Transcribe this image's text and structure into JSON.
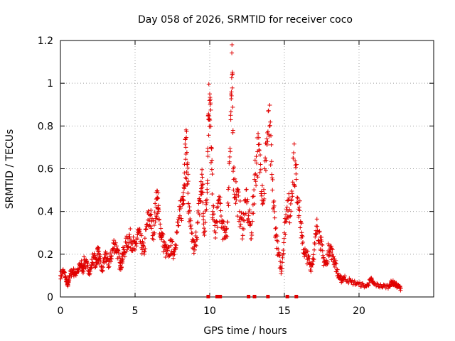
{
  "chart_data": {
    "type": "scatter",
    "title": "Day 058 of 2026, SRMTID for receiver coco",
    "xlabel": "GPS time / hours",
    "ylabel": "SRMTID / TECUs",
    "xlim": [
      0,
      25
    ],
    "ylim": [
      0,
      1.2
    ],
    "x_ticks": [
      0,
      5,
      10,
      15,
      20
    ],
    "x_tick_labels": [
      "0",
      "5",
      "10",
      "15",
      "20"
    ],
    "y_ticks": [
      0,
      0.2,
      0.4,
      0.6,
      0.8,
      1.0,
      1.2
    ],
    "y_tick_labels": [
      "0",
      "0.2",
      "0.4",
      "0.6",
      "0.8",
      "1",
      "1.2"
    ],
    "grid": true,
    "series": [
      {
        "name": "SRMTID",
        "color": "#e00000",
        "marker": "plus",
        "x": [
          0.0,
          0.2,
          0.4,
          0.5,
          0.6,
          0.8,
          1.0,
          1.2,
          1.4,
          1.5,
          1.6,
          1.8,
          2.0,
          2.2,
          2.4,
          2.5,
          2.6,
          2.8,
          3.0,
          3.2,
          3.4,
          3.6,
          3.8,
          4.0,
          4.1,
          4.2,
          4.4,
          4.6,
          4.8,
          5.0,
          5.2,
          5.4,
          5.6,
          5.8,
          6.0,
          6.2,
          6.4,
          6.5,
          6.6,
          6.8,
          7.0,
          7.2,
          7.4,
          7.6,
          7.8,
          8.0,
          8.2,
          8.3,
          8.4,
          8.5,
          8.6,
          8.8,
          9.0,
          9.2,
          9.4,
          9.5,
          9.6,
          9.8,
          9.9,
          10.0,
          10.1,
          10.2,
          10.4,
          10.6,
          10.8,
          11.0,
          11.2,
          11.4,
          11.5,
          11.6,
          11.8,
          12.0,
          12.2,
          12.4,
          12.6,
          12.8,
          13.0,
          13.2,
          13.4,
          13.6,
          13.8,
          14.0,
          14.2,
          14.4,
          14.6,
          14.8,
          15.0,
          15.2,
          15.4,
          15.6,
          15.8,
          16.0,
          16.2,
          16.4,
          16.6,
          16.8,
          17.0,
          17.2,
          17.4,
          17.6,
          17.8,
          18.0,
          18.2,
          18.4,
          18.6,
          18.8,
          19.0,
          19.5,
          20.0,
          20.5,
          20.8,
          21.0,
          21.5,
          22.0,
          22.2,
          22.4,
          22.6,
          22.8
        ],
        "y": [
          0.1,
          0.12,
          0.08,
          0.05,
          0.1,
          0.12,
          0.11,
          0.13,
          0.15,
          0.12,
          0.17,
          0.14,
          0.12,
          0.19,
          0.15,
          0.22,
          0.18,
          0.12,
          0.2,
          0.15,
          0.19,
          0.25,
          0.22,
          0.14,
          0.17,
          0.2,
          0.24,
          0.28,
          0.26,
          0.22,
          0.3,
          0.25,
          0.21,
          0.34,
          0.38,
          0.3,
          0.42,
          0.46,
          0.36,
          0.28,
          0.22,
          0.2,
          0.24,
          0.21,
          0.3,
          0.38,
          0.45,
          0.58,
          0.7,
          0.62,
          0.4,
          0.26,
          0.22,
          0.35,
          0.48,
          0.56,
          0.3,
          0.44,
          0.85,
          0.95,
          0.7,
          0.4,
          0.3,
          0.45,
          0.35,
          0.28,
          0.35,
          0.85,
          1.04,
          0.55,
          0.48,
          0.4,
          0.32,
          0.45,
          0.38,
          0.3,
          0.55,
          0.68,
          0.62,
          0.45,
          0.72,
          0.8,
          0.5,
          0.32,
          0.2,
          0.12,
          0.3,
          0.45,
          0.38,
          0.65,
          0.55,
          0.42,
          0.25,
          0.2,
          0.18,
          0.14,
          0.22,
          0.33,
          0.28,
          0.18,
          0.15,
          0.24,
          0.2,
          0.16,
          0.1,
          0.08,
          0.09,
          0.07,
          0.06,
          0.05,
          0.08,
          0.06,
          0.05,
          0.05,
          0.07,
          0.06,
          0.05,
          0.04
        ]
      }
    ],
    "baseline_markers_x": [
      9.9,
      10.5,
      10.7,
      12.6,
      13.0,
      13.9,
      15.2,
      15.8
    ]
  }
}
